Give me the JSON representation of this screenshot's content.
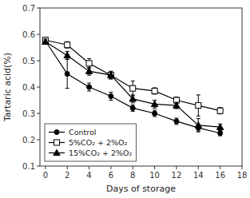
{
  "chart_data": {
    "type": "line",
    "x": [
      0,
      2,
      4,
      6,
      8,
      10,
      12,
      14,
      16
    ],
    "xlabel": "Days of storage",
    "ylabel": "Tartaric acid(%)",
    "xlim": [
      -0.5,
      18
    ],
    "ylim": [
      0.1,
      0.7
    ],
    "xticks": [
      0,
      2,
      4,
      6,
      8,
      10,
      12,
      14,
      16,
      18
    ],
    "yticks": [
      0.1,
      0.2,
      0.3,
      0.4,
      0.5,
      0.6,
      0.7
    ],
    "grid": false,
    "legend": "lower left",
    "series": [
      {
        "name": "Control",
        "color": "#000000",
        "marker": "circle",
        "values": [
          0.575,
          0.45,
          0.4,
          0.365,
          0.32,
          0.3,
          0.27,
          0.245,
          0.225
        ],
        "errors": [
          0.012,
          0.055,
          0.015,
          0.015,
          0.012,
          0.012,
          0.012,
          0.012,
          0.01
        ]
      },
      {
        "name": "5%CO₂ + 2%O₂",
        "color": "#000000",
        "marker": "open-square",
        "values": [
          0.578,
          0.56,
          0.49,
          0.445,
          0.395,
          0.385,
          0.35,
          0.33,
          0.31
        ],
        "errors": [
          0.01,
          0.012,
          0.018,
          0.015,
          0.028,
          0.012,
          0.012,
          0.04,
          0.012
        ]
      },
      {
        "name": "15%CO₂ + 2%O₂",
        "color": "#000000",
        "marker": "triangle",
        "values": [
          0.572,
          0.52,
          0.46,
          0.445,
          0.355,
          0.335,
          0.33,
          0.255,
          0.248
        ],
        "errors": [
          0.01,
          0.015,
          0.015,
          0.012,
          0.015,
          0.015,
          0.012,
          0.025,
          0.012
        ]
      }
    ]
  }
}
